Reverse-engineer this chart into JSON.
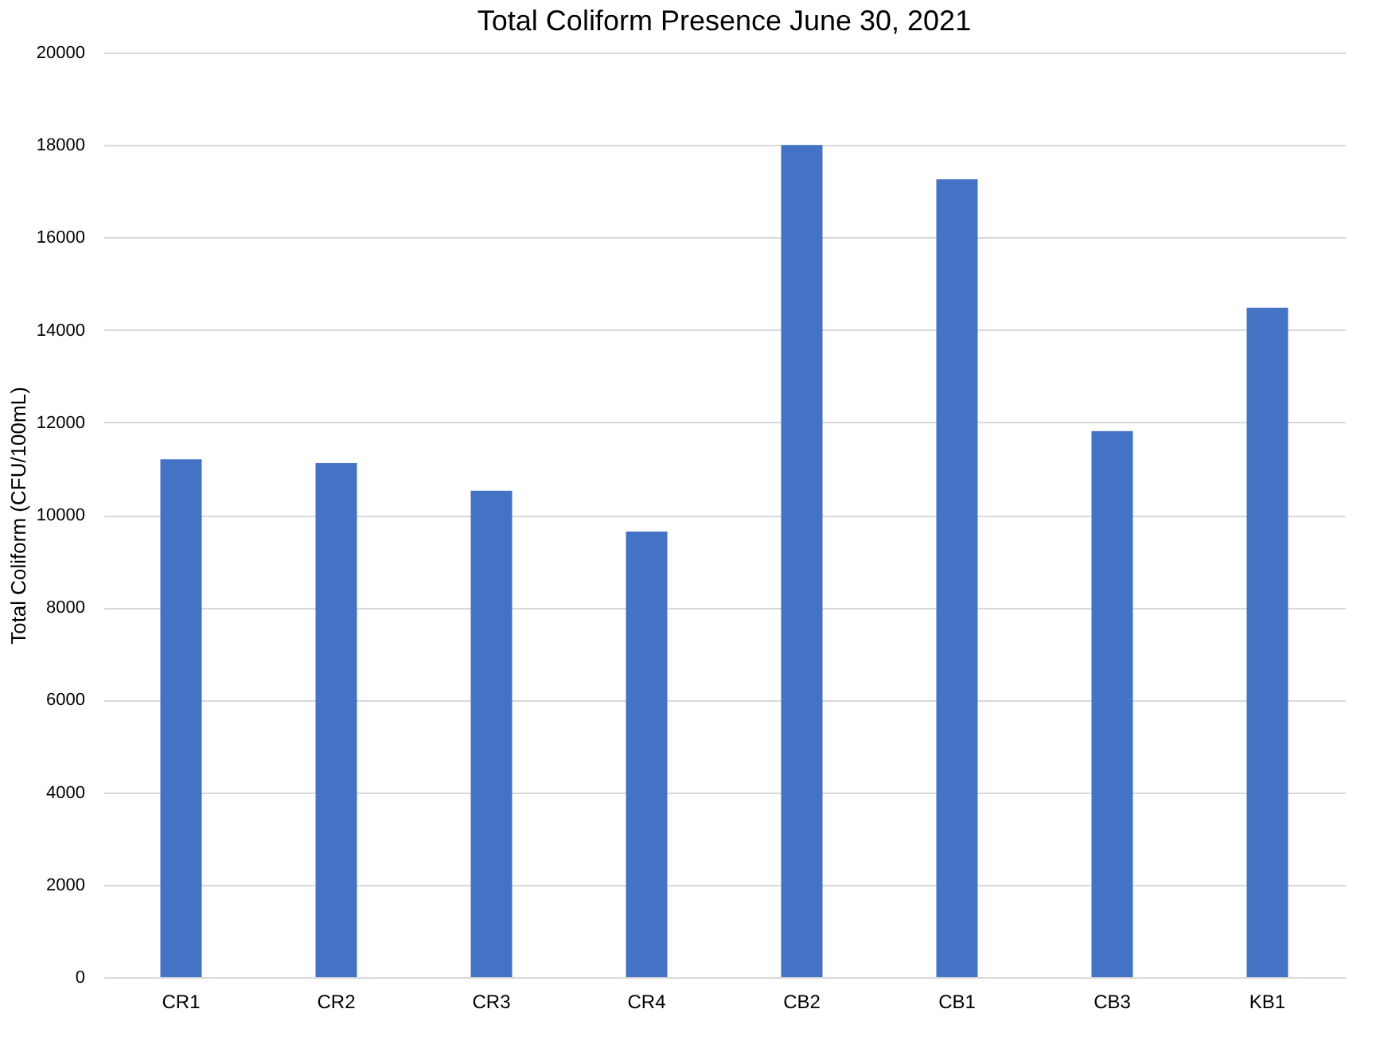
{
  "chart_data": {
    "type": "bar",
    "title": "Total Coliform Presence June 30, 2021",
    "ylabel": "Total Coliform (CFU/100mL)",
    "categories": [
      "CR1",
      "CR2",
      "CR3",
      "CR4",
      "CB2",
      "CB1",
      "CB3",
      "KB1"
    ],
    "values": [
      11200,
      11120,
      10520,
      9640,
      18000,
      17260,
      11810,
      14480
    ],
    "color": "#4472c4",
    "ylim": [
      0,
      20000
    ],
    "yticks": [
      0,
      2000,
      4000,
      6000,
      8000,
      10000,
      12000,
      14000,
      16000,
      18000,
      20000
    ],
    "grid": "y"
  }
}
